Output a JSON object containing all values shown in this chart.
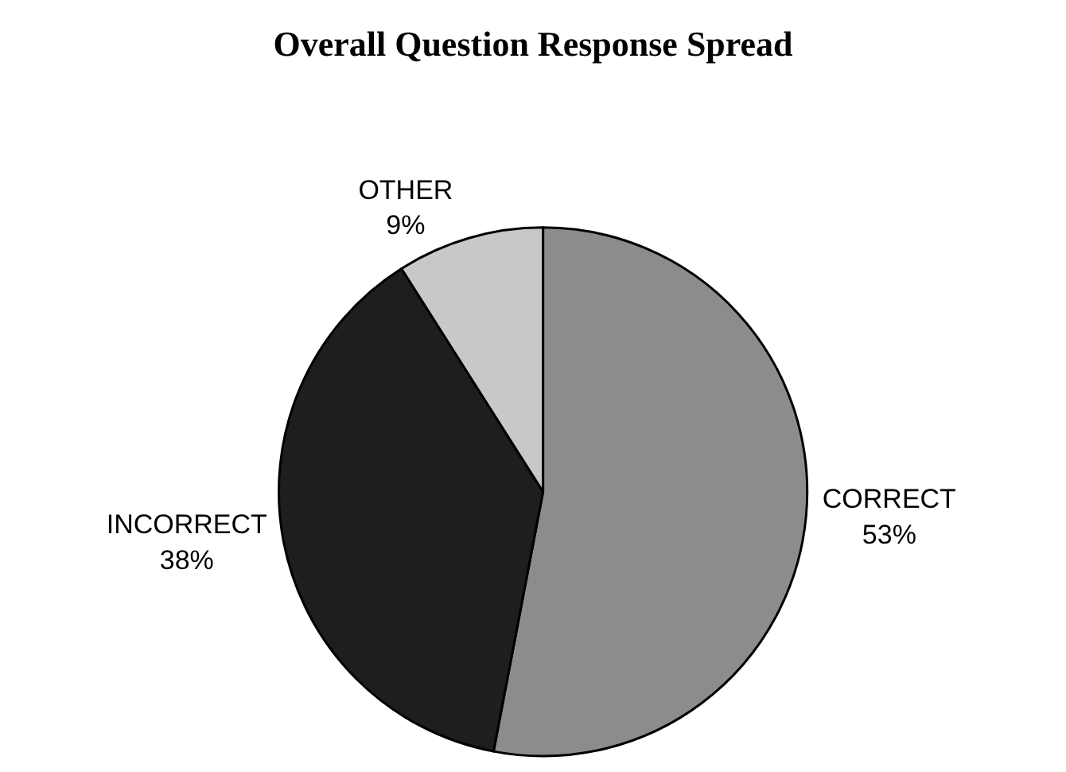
{
  "chart_data": {
    "type": "pie",
    "title": "Overall Question Response Spread",
    "categories": [
      "CORRECT",
      "INCORRECT",
      "OTHER"
    ],
    "values": [
      53,
      38,
      9
    ],
    "value_labels": [
      "53%",
      "38%",
      "9%"
    ],
    "colors": [
      "#8c8c8c",
      "#1e1e1e",
      "#c8c8c8"
    ],
    "legend": false
  }
}
